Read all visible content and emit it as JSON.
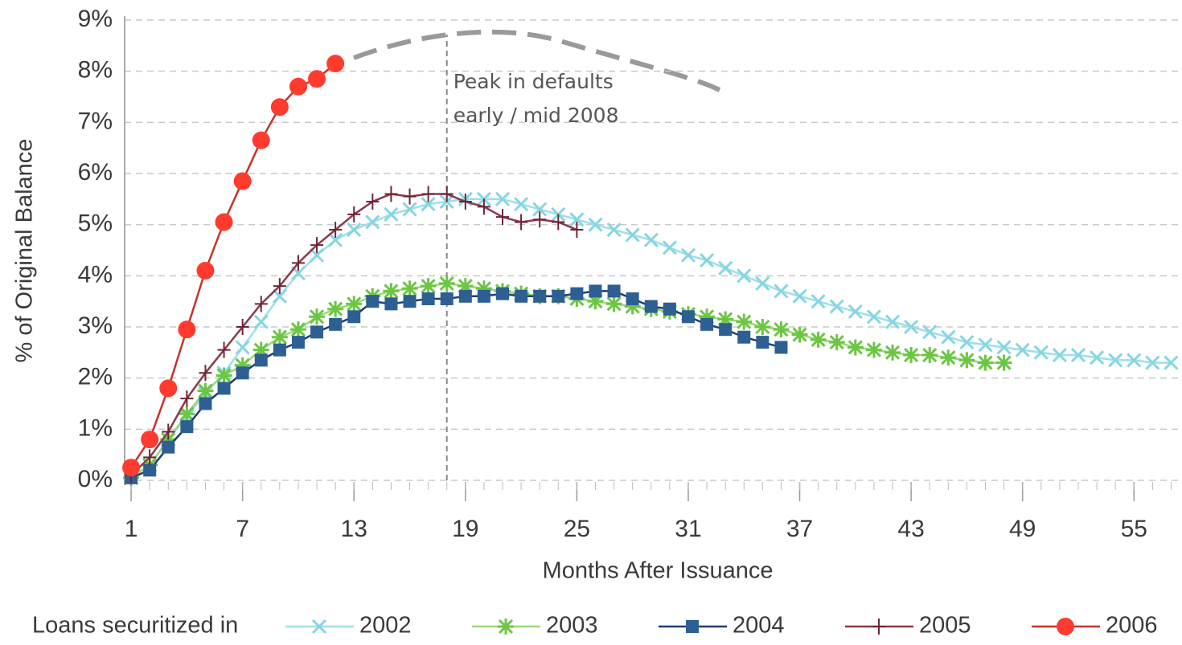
{
  "chart_data": {
    "type": "line",
    "xlabel": "Months After Issuance",
    "ylabel": "% of Original Balance",
    "legend_title": "Loans securitized in",
    "xlim": [
      0.65,
      57.5
    ],
    "xticks": [
      1,
      7,
      13,
      19,
      25,
      31,
      37,
      43,
      49,
      55
    ],
    "ylim": [
      0,
      9
    ],
    "yticks": [
      {
        "value": 0,
        "label": "0%"
      },
      {
        "value": 1,
        "label": "1%"
      },
      {
        "value": 2,
        "label": "2%"
      },
      {
        "value": 3,
        "label": "3%"
      },
      {
        "value": 4,
        "label": "4%"
      },
      {
        "value": 5,
        "label": "5%"
      },
      {
        "value": 6,
        "label": "6%"
      },
      {
        "value": 7,
        "label": "7%"
      },
      {
        "value": 8,
        "label": "8%"
      },
      {
        "value": 9,
        "label": "9%"
      }
    ],
    "grid": true,
    "legend": "bottom",
    "x": [
      1,
      2,
      3,
      4,
      5,
      6,
      7,
      8,
      9,
      10,
      11,
      12,
      13,
      14,
      15,
      16,
      17,
      18,
      19,
      20,
      21,
      22,
      23,
      24,
      25,
      26,
      27,
      28,
      29,
      30,
      31,
      32,
      33,
      34,
      35,
      36,
      37,
      38,
      39,
      40,
      41,
      42,
      43,
      44,
      45,
      46,
      47,
      48,
      49,
      50,
      51,
      52,
      53,
      54,
      55,
      56,
      57
    ],
    "series": [
      {
        "name": "2002",
        "color": "#86d6e2",
        "line_color": "#9edfe8",
        "marker": "x",
        "values": [
          0.05,
          0.3,
          0.8,
          1.25,
          1.7,
          2.1,
          2.6,
          3.1,
          3.6,
          4.05,
          4.4,
          4.7,
          4.9,
          5.05,
          5.2,
          5.3,
          5.4,
          5.45,
          5.5,
          5.5,
          5.5,
          5.4,
          5.3,
          5.2,
          5.1,
          5.0,
          4.9,
          4.8,
          4.7,
          4.55,
          4.4,
          4.3,
          4.15,
          4.0,
          3.85,
          3.7,
          3.6,
          3.5,
          3.4,
          3.3,
          3.2,
          3.1,
          3.0,
          2.9,
          2.8,
          2.7,
          2.65,
          2.6,
          2.55,
          2.5,
          2.45,
          2.45,
          2.4,
          2.35,
          2.35,
          2.3,
          2.3
        ]
      },
      {
        "name": "2003",
        "color": "#6cc644",
        "line_color": "#9bd97a",
        "marker": "star",
        "values": [
          0.05,
          0.3,
          0.8,
          1.3,
          1.75,
          2.05,
          2.25,
          2.55,
          2.8,
          2.95,
          3.2,
          3.35,
          3.45,
          3.6,
          3.7,
          3.75,
          3.8,
          3.85,
          3.8,
          3.75,
          3.7,
          3.65,
          3.6,
          3.6,
          3.55,
          3.5,
          3.45,
          3.4,
          3.35,
          3.3,
          3.25,
          3.2,
          3.15,
          3.1,
          3.0,
          2.95,
          2.85,
          2.75,
          2.7,
          2.6,
          2.55,
          2.5,
          2.45,
          2.45,
          2.4,
          2.35,
          2.3,
          2.3,
          null,
          null,
          null,
          null,
          null,
          null,
          null,
          null,
          null
        ]
      },
      {
        "name": "2004",
        "color": "#2d5f93",
        "line_color": "#1f3f6e",
        "marker": "square",
        "values": [
          0.05,
          0.2,
          0.65,
          1.05,
          1.5,
          1.8,
          2.1,
          2.35,
          2.55,
          2.7,
          2.9,
          3.05,
          3.2,
          3.5,
          3.45,
          3.5,
          3.55,
          3.55,
          3.6,
          3.6,
          3.65,
          3.6,
          3.6,
          3.6,
          3.65,
          3.7,
          3.7,
          3.55,
          3.4,
          3.35,
          3.2,
          3.05,
          2.95,
          2.8,
          2.7,
          2.6,
          null,
          null,
          null,
          null,
          null,
          null,
          null,
          null,
          null,
          null,
          null,
          null,
          null,
          null,
          null,
          null,
          null,
          null,
          null,
          null,
          null
        ]
      },
      {
        "name": "2005",
        "color": "#6e2436",
        "line_color": "#8a3a4a",
        "marker": "plus",
        "values": [
          0.1,
          0.45,
          0.95,
          1.6,
          2.1,
          2.55,
          3.0,
          3.45,
          3.8,
          4.25,
          4.6,
          4.9,
          5.2,
          5.45,
          5.6,
          5.55,
          5.6,
          5.6,
          5.45,
          5.35,
          5.15,
          5.05,
          5.1,
          5.05,
          4.9,
          null,
          null,
          null,
          null,
          null,
          null,
          null,
          null,
          null,
          null,
          null,
          null,
          null,
          null,
          null,
          null,
          null,
          null,
          null,
          null,
          null,
          null,
          null,
          null,
          null,
          null,
          null,
          null,
          null,
          null,
          null,
          null
        ]
      },
      {
        "name": "2006",
        "color": "#ff3b2f",
        "line_color": "#c8322a",
        "marker": "circle",
        "values": [
          0.25,
          0.8,
          1.8,
          2.95,
          4.1,
          5.05,
          5.85,
          6.65,
          7.3,
          7.7,
          7.85,
          8.15,
          null,
          null,
          null,
          null,
          null,
          null,
          null,
          null,
          null,
          null,
          null,
          null,
          null,
          null,
          null,
          null,
          null,
          null,
          null,
          null,
          null,
          null,
          null,
          null,
          null,
          null,
          null,
          null,
          null,
          null,
          null,
          null,
          null,
          null,
          null,
          null,
          null,
          null,
          null,
          null,
          null,
          null,
          null,
          null,
          null
        ]
      }
    ],
    "annotations": [
      {
        "x": 18,
        "text": [
          "Peak in defaults",
          "early / mid 2008"
        ]
      }
    ]
  }
}
